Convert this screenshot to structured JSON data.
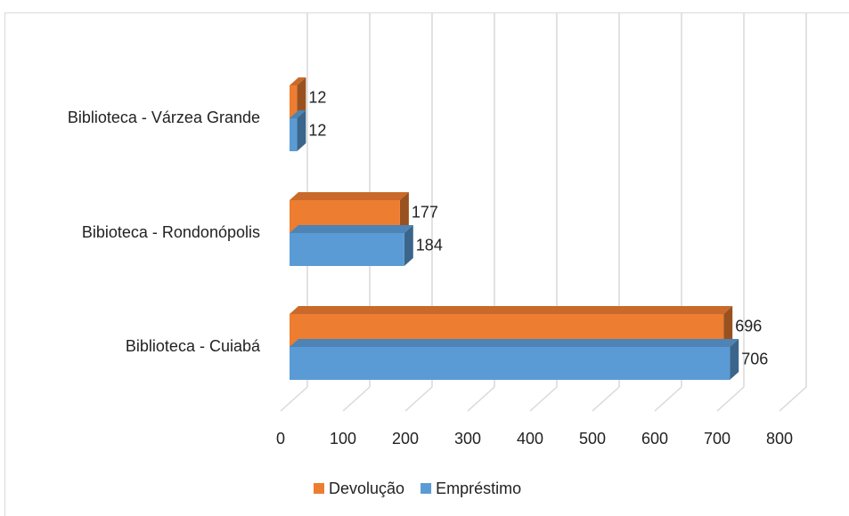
{
  "chart_data": {
    "type": "bar3d-horizontal",
    "categories": [
      "Biblioteca - Cuiabá",
      "Bibioteca - Rondonópolis",
      "Biblioteca - Várzea Grande"
    ],
    "series": [
      {
        "name": "Empréstimo",
        "color": "#5b9bd5",
        "values": [
          706,
          184,
          12
        ]
      },
      {
        "name": "Devolução",
        "color": "#ed7d31",
        "values": [
          696,
          177,
          12
        ]
      }
    ],
    "xlim": [
      0,
      800
    ],
    "xticks": [
      0,
      100,
      200,
      300,
      400,
      500,
      600,
      700,
      800
    ],
    "grid": true,
    "legend": "bottom"
  }
}
